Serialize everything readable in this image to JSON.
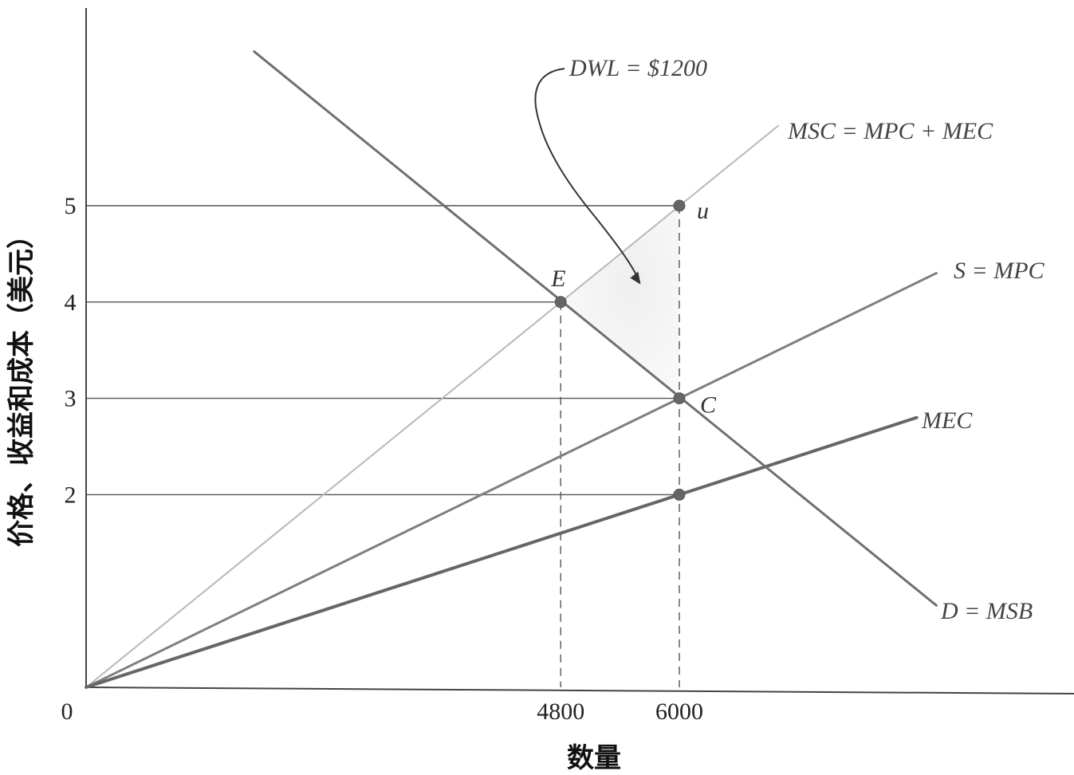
{
  "chart_data": {
    "type": "line",
    "title": "",
    "xlabel": "数量",
    "ylabel": "价格、收益和成本（美元）",
    "origin_label": "0",
    "x_ticks": [
      {
        "value": 4800,
        "label": "4800"
      },
      {
        "value": 6000,
        "label": "6000"
      }
    ],
    "y_ticks": [
      {
        "value": 2,
        "label": "2"
      },
      {
        "value": 3,
        "label": "3"
      },
      {
        "value": 4,
        "label": "4"
      },
      {
        "value": 5,
        "label": "5"
      }
    ],
    "xlim": [
      0,
      10000
    ],
    "ylim": [
      0,
      7
    ],
    "grid": false,
    "series": [
      {
        "name": "MSC = MPC + MEC",
        "color": "#b8b8b8",
        "x": [
          0,
          7000
        ],
        "y": [
          0,
          5.83
        ]
      },
      {
        "name": "S = MPC",
        "color": "#7f7f7f",
        "x": [
          0,
          8600
        ],
        "y": [
          0,
          4.3
        ]
      },
      {
        "name": "MEC",
        "color": "#666666",
        "x": [
          0,
          8400
        ],
        "y": [
          0,
          2.8
        ]
      },
      {
        "name": "D = MSB",
        "color": "#6f6f6f",
        "x": [
          1700,
          8600
        ],
        "y": [
          6.6,
          0.85
        ]
      }
    ],
    "points": [
      {
        "label": "E",
        "x": 4800,
        "y": 4
      },
      {
        "label": "C",
        "x": 6000,
        "y": 3
      },
      {
        "label": "u",
        "x": 6000,
        "y": 5
      },
      {
        "label": "",
        "x": 6000,
        "y": 2
      }
    ],
    "annotations": [
      {
        "text": "DWL = $1200",
        "target": [
          5600,
          4.2
        ]
      }
    ]
  }
}
